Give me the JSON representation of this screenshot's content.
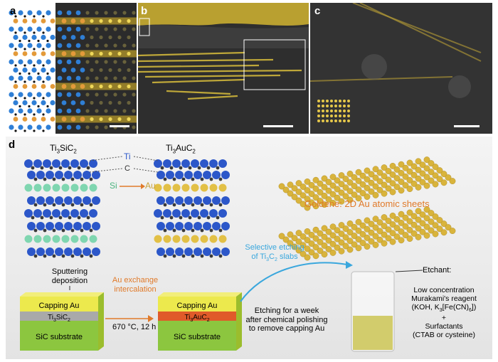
{
  "panels": {
    "a": {
      "label": "a"
    },
    "b": {
      "label": "b"
    },
    "c": {
      "label": "c"
    },
    "d": {
      "label": "d"
    }
  },
  "structures": {
    "left_title_main": "Ti",
    "left_title_sub1": "3",
    "left_title_mid": "SiC",
    "left_title_sub2": "2",
    "right_title_main": "Ti",
    "right_title_sub1": "3",
    "right_title_mid": "AuC",
    "right_title_sub2": "2",
    "ti_label": "Ti",
    "c_label": "C",
    "si_label": "Si",
    "au_label": "Au"
  },
  "goldene_title": "Goldene: 2D Au atomic sheets",
  "selective_line1": "Selective etching",
  "selective_line2_a": "of Ti",
  "selective_line2_sub1": "3",
  "selective_line2_b": "C",
  "selective_line2_sub2": "2",
  "selective_line2_c": " slabs",
  "sputtering_line1": "Sputtering",
  "sputtering_line2": "deposition",
  "exchange_line1": "Au exchange",
  "exchange_line2": "intercalation",
  "condition": "670 °C, 12 h",
  "etching_line1": "Etching for a week",
  "etching_line2": "after chemical polishing",
  "etching_line3": "to remove capping Au",
  "stack_left": {
    "top": "Capping Au",
    "mid_a": "Ti",
    "mid_sub1": "3",
    "mid_b": "SiC",
    "mid_sub2": "2",
    "bottom": "SiC substrate"
  },
  "stack_right": {
    "top": "Capping Au",
    "mid_a": "Ti",
    "mid_sub1": "3",
    "mid_b": "AuC",
    "mid_sub2": "2",
    "bottom": "SiC substrate"
  },
  "etchant": {
    "title": "Etchant:",
    "line1": "Low concentration",
    "line2": "Murakami's reagent",
    "line3_a": "(KOH, K",
    "line3_sub1": "3",
    "line3_b": "[Fe(CN)",
    "line3_sub2": "6",
    "line3_c": "])",
    "plus": "+",
    "line4": "Surfactants",
    "line5": "(CTAB or cysteine)"
  },
  "colors": {
    "titanium": "#2c57c9",
    "carbon": "#3a3a3a",
    "silicon": "#7fd6b0",
    "gold": "#e2c046",
    "selective_text": "#3aa7dd",
    "orange_accent": "#e07a2a"
  }
}
